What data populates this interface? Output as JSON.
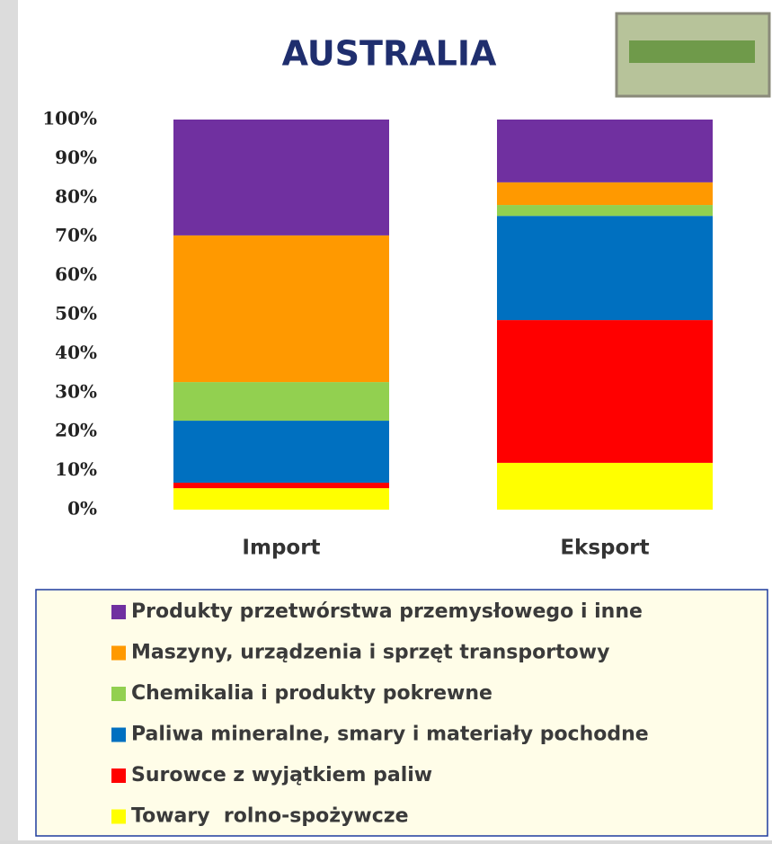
{
  "chart_data": {
    "type": "stacked-bar",
    "title": "AUSTRALIA",
    "categories": [
      "Import",
      "Eksport"
    ],
    "series": [
      {
        "name": "Towary  rolno-spożywcze",
        "color": "#ffff00",
        "values": [
          5.5,
          12.0
        ]
      },
      {
        "name": "Surowce z wyjątkiem paliw",
        "color": "#ff0000",
        "values": [
          1.4,
          36.6
        ]
      },
      {
        "name": "Paliwa mineralne, smary i materiały pochodne",
        "color": "#0070c0",
        "values": [
          15.9,
          26.7
        ]
      },
      {
        "name": "Chemikalia i produkty pokrewne",
        "color": "#92d050",
        "values": [
          9.9,
          2.8
        ]
      },
      {
        "name": "Maszyny, urządzenia i sprzęt transportowy",
        "color": "#ff9900",
        "values": [
          37.6,
          5.8
        ]
      },
      {
        "name": "Produkty przetwórstwa przemysłowego i inne",
        "color": "#7030a0",
        "values": [
          29.7,
          16.1
        ]
      }
    ],
    "ylim": [
      0,
      100
    ],
    "yticks": [
      {
        "value": 0,
        "label": "0%"
      },
      {
        "value": 10,
        "label": "10%"
      },
      {
        "value": 20,
        "label": "20%"
      },
      {
        "value": 30,
        "label": "30%"
      },
      {
        "value": 40,
        "label": "40%"
      },
      {
        "value": 50,
        "label": "50%"
      },
      {
        "value": 60,
        "label": "60%"
      },
      {
        "value": 70,
        "label": "70%"
      },
      {
        "value": 80,
        "label": "80%"
      },
      {
        "value": 90,
        "label": "90%"
      },
      {
        "value": 100,
        "label": "100%"
      }
    ],
    "grid": false,
    "legend": "bottom"
  }
}
